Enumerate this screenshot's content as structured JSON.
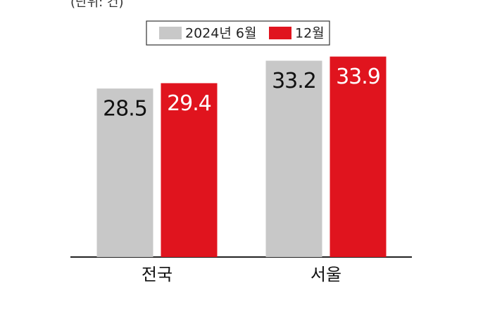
{
  "chart_data": {
    "type": "bar",
    "subtitle": "(단위: 건)",
    "categories": [
      "전국",
      "서울"
    ],
    "series": [
      {
        "name": "2024년 6월",
        "color": "#c8c8c8",
        "label_color": "#111111",
        "values": [
          28.5,
          33.2
        ]
      },
      {
        "name": "12월",
        "color": "#e0141e",
        "label_color": "#ffffff",
        "values": [
          29.4,
          33.9
        ]
      }
    ]
  }
}
